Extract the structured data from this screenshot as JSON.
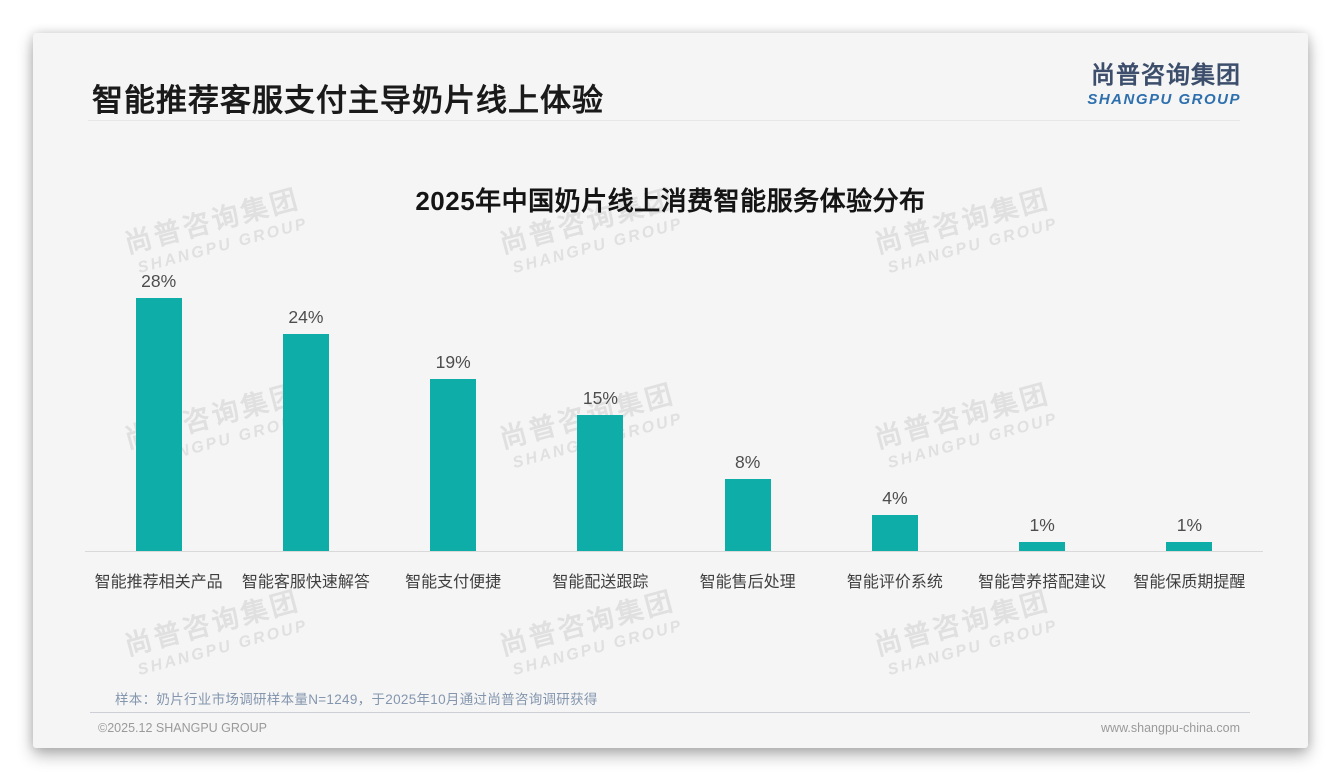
{
  "header": {
    "title": "智能推荐客服支付主导奶片线上体验",
    "logo": {
      "chinese": "尚普咨询集团",
      "english": "SHANGPU GROUP",
      "color_chinese": "#3c4e6b",
      "color_english": "#2e6fad"
    }
  },
  "chart_data": {
    "type": "bar",
    "title": "2025年中国奶片线上消费智能服务体验分布",
    "categories": [
      "智能推荐相关产品",
      "智能客服快速解答",
      "智能支付便捷",
      "智能配送跟踪",
      "智能售后处理",
      "智能评价系统",
      "智能营养搭配建议",
      "智能保质期提醒"
    ],
    "values": [
      28,
      24,
      19,
      15,
      8,
      4,
      1,
      1
    ],
    "value_labels": [
      "28%",
      "24%",
      "19%",
      "15%",
      "8%",
      "4%",
      "1%",
      "1%"
    ],
    "unit": "%",
    "xlabel": "",
    "ylabel": "",
    "ylim": [
      0,
      30
    ],
    "gridlines": false,
    "legend": "none",
    "bar_color": "#0fada7"
  },
  "watermark": {
    "chinese": "尚普咨询集团",
    "english": "SHANGPU GROUP"
  },
  "footer": {
    "sample_note": "样本：奶片行业市场调研样本量N=1249，于2025年10月通过尚普咨询调研获得",
    "copyright": "©2025.12 SHANGPU GROUP",
    "website": "www.shangpu-china.com"
  }
}
